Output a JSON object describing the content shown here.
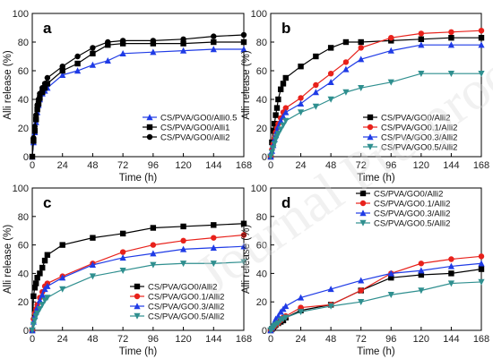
{
  "watermark": "Journal Pre-proof",
  "colors": {
    "CS/PVA/GO0/Alli2": "#000000",
    "CS/PVA/GO0.1/Alli2": "#e8211b",
    "CS/PVA/GO0.3/Alli2": "#1f3be6",
    "CS/PVA/GO0.5/Alli2": "#2f8f8f",
    "CS/PVA/GO0/Alli0.5": "#1f3be6",
    "CS/PVA/GO0/Alli1": "#000000"
  },
  "chart_data": [
    {
      "panel": "a",
      "type": "line",
      "xlabel": "Time (h)",
      "ylabel": "Alli release (%)",
      "xlim": [
        0,
        168
      ],
      "ylim": [
        0,
        100
      ],
      "xticks": [
        0,
        24,
        48,
        72,
        96,
        120,
        144,
        168
      ],
      "yticks": [
        0,
        20,
        40,
        60,
        80,
        100
      ],
      "legend_position": "bottom-right",
      "series": [
        {
          "name": "CS/PVA/GO0/Alli0.5",
          "marker": "triangle-up",
          "x": [
            0,
            1,
            2,
            3,
            4,
            5,
            6,
            8,
            10,
            12,
            24,
            36,
            48,
            60,
            72,
            96,
            120,
            144,
            168
          ],
          "y": [
            0,
            10,
            17,
            24,
            31,
            36,
            40,
            44,
            46,
            48,
            57,
            60,
            64,
            67,
            72,
            73,
            74,
            75,
            75
          ]
        },
        {
          "name": "CS/PVA/GO0/Alli1",
          "marker": "square",
          "x": [
            0,
            1,
            2,
            3,
            4,
            5,
            6,
            8,
            10,
            12,
            24,
            36,
            48,
            60,
            72,
            96,
            120,
            144,
            168
          ],
          "y": [
            0,
            11,
            18,
            26,
            33,
            37,
            41,
            45,
            48,
            51,
            60,
            65,
            72,
            78,
            79,
            79,
            79,
            80,
            80
          ]
        },
        {
          "name": "CS/PVA/GO0/Alli2",
          "marker": "circle",
          "x": [
            0,
            1,
            2,
            3,
            4,
            5,
            6,
            8,
            10,
            12,
            24,
            36,
            48,
            60,
            72,
            96,
            120,
            144,
            168
          ],
          "y": [
            0,
            13,
            21,
            29,
            36,
            40,
            44,
            48,
            51,
            55,
            63,
            70,
            76,
            80,
            81,
            81,
            82,
            84,
            85
          ]
        }
      ]
    },
    {
      "panel": "b",
      "type": "line",
      "xlabel": "Time (h)",
      "ylabel": "Alli release (%)",
      "xlim": [
        0,
        168
      ],
      "ylim": [
        0,
        100
      ],
      "xticks": [
        0,
        24,
        48,
        72,
        96,
        120,
        144,
        168
      ],
      "yticks": [
        0,
        20,
        40,
        60,
        80,
        100
      ],
      "legend_position": "bottom-right",
      "series": [
        {
          "name": "CS/PVA/GO0/Alli2",
          "marker": "square",
          "x": [
            0,
            1,
            2,
            3,
            4,
            5,
            6,
            8,
            10,
            12,
            24,
            36,
            48,
            60,
            72,
            96,
            120,
            144,
            168
          ],
          "y": [
            0,
            10,
            18,
            23,
            29,
            34,
            40,
            47,
            51,
            55,
            63,
            70,
            76,
            80,
            80,
            81,
            82,
            83,
            83
          ]
        },
        {
          "name": "CS/PVA/GO0.1/Alli2",
          "marker": "circle",
          "x": [
            0,
            1,
            2,
            3,
            4,
            5,
            6,
            8,
            10,
            12,
            24,
            36,
            48,
            60,
            72,
            96,
            120,
            144,
            168
          ],
          "y": [
            0,
            5,
            9,
            13,
            17,
            20,
            23,
            27,
            31,
            34,
            41,
            50,
            58,
            66,
            76,
            83,
            86,
            87,
            88
          ]
        },
        {
          "name": "CS/PVA/GO0.3/Alli2",
          "marker": "triangle-up",
          "x": [
            0,
            1,
            2,
            3,
            4,
            5,
            6,
            8,
            10,
            12,
            24,
            36,
            48,
            60,
            72,
            96,
            120,
            144,
            168
          ],
          "y": [
            0,
            4,
            8,
            12,
            15,
            18,
            21,
            25,
            28,
            31,
            37,
            45,
            52,
            61,
            68,
            74,
            78,
            78,
            78
          ]
        },
        {
          "name": "CS/PVA/GO0.5/Alli2",
          "marker": "triangle-down",
          "x": [
            0,
            1,
            2,
            3,
            4,
            5,
            6,
            8,
            10,
            12,
            24,
            36,
            48,
            60,
            72,
            96,
            120,
            144,
            168
          ],
          "y": [
            0,
            3,
            6,
            9,
            12,
            14,
            16,
            19,
            22,
            25,
            31,
            35,
            40,
            45,
            48,
            52,
            58,
            58,
            58
          ]
        }
      ]
    },
    {
      "panel": "c",
      "type": "line",
      "xlabel": "Time (h)",
      "ylabel": "Alli release (%)",
      "xlim": [
        0,
        168
      ],
      "ylim": [
        0,
        100
      ],
      "xticks": [
        0,
        24,
        48,
        72,
        96,
        120,
        144,
        168
      ],
      "yticks": [
        0,
        20,
        40,
        60,
        80,
        100
      ],
      "legend_position": "bottom-right",
      "series": [
        {
          "name": "CS/PVA/GO0/Alli2",
          "marker": "square",
          "x": [
            0,
            1,
            2,
            3,
            4,
            6,
            8,
            10,
            12,
            24,
            48,
            72,
            96,
            120,
            144,
            168
          ],
          "y": [
            0,
            24,
            30,
            33,
            37,
            40,
            44,
            49,
            53,
            60,
            65,
            68,
            72,
            73,
            74,
            75
          ]
        },
        {
          "name": "CS/PVA/GO0.1/Alli2",
          "marker": "circle",
          "x": [
            0,
            1,
            2,
            3,
            4,
            6,
            8,
            10,
            12,
            24,
            48,
            72,
            96,
            120,
            144,
            168
          ],
          "y": [
            0,
            8,
            12,
            15,
            18,
            23,
            27,
            31,
            33,
            38,
            47,
            55,
            60,
            63,
            65,
            67
          ]
        },
        {
          "name": "CS/PVA/GO0.3/Alli2",
          "marker": "triangle-up",
          "x": [
            0,
            1,
            2,
            3,
            4,
            6,
            8,
            10,
            12,
            24,
            48,
            72,
            96,
            120,
            144,
            168
          ],
          "y": [
            0,
            6,
            10,
            13,
            16,
            21,
            25,
            29,
            31,
            37,
            46,
            51,
            54,
            57,
            58,
            59
          ]
        },
        {
          "name": "CS/PVA/GO0.5/Alli2",
          "marker": "triangle-down",
          "x": [
            0,
            1,
            2,
            3,
            4,
            6,
            8,
            10,
            12,
            24,
            48,
            72,
            96,
            120,
            144,
            168
          ],
          "y": [
            0,
            4,
            7,
            10,
            12,
            15,
            18,
            21,
            23,
            29,
            38,
            42,
            46,
            47,
            47,
            48
          ]
        }
      ]
    },
    {
      "panel": "d",
      "type": "line",
      "xlabel": "Time (h)",
      "ylabel": "Alli release (%)",
      "xlim": [
        0,
        168
      ],
      "ylim": [
        0,
        100
      ],
      "xticks": [
        0,
        24,
        48,
        72,
        96,
        120,
        144,
        168
      ],
      "yticks": [
        0,
        20,
        40,
        60,
        80,
        100
      ],
      "legend_position": "top-right",
      "series": [
        {
          "name": "CS/PVA/GO0/Alli2",
          "marker": "square",
          "x": [
            0,
            1,
            2,
            3,
            4,
            6,
            8,
            10,
            12,
            24,
            48,
            72,
            96,
            120,
            144,
            168
          ],
          "y": [
            0,
            1,
            2,
            3,
            4,
            5,
            6,
            7,
            9,
            14,
            18,
            28,
            37,
            39,
            40,
            43
          ]
        },
        {
          "name": "CS/PVA/GO0.1/Alli2",
          "marker": "circle",
          "x": [
            0,
            1,
            2,
            3,
            4,
            6,
            8,
            10,
            12,
            24,
            48,
            72,
            96,
            120,
            144,
            168
          ],
          "y": [
            0,
            1,
            2,
            3,
            4,
            5,
            7,
            9,
            10,
            16,
            18,
            28,
            40,
            47,
            50,
            52
          ]
        },
        {
          "name": "CS/PVA/GO0.3/Alli2",
          "marker": "triangle-up",
          "x": [
            0,
            1,
            2,
            3,
            4,
            6,
            8,
            10,
            12,
            24,
            48,
            72,
            96,
            120,
            144,
            168
          ],
          "y": [
            0,
            2,
            4,
            6,
            8,
            10,
            13,
            15,
            17,
            23,
            29,
            35,
            40,
            42,
            45,
            47
          ]
        },
        {
          "name": "CS/PVA/GO0.5/Alli2",
          "marker": "triangle-down",
          "x": [
            0,
            1,
            2,
            3,
            4,
            6,
            8,
            10,
            12,
            24,
            48,
            72,
            96,
            120,
            144,
            168
          ],
          "y": [
            0,
            1,
            2,
            3,
            4,
            5,
            7,
            8,
            9,
            13,
            17,
            20,
            25,
            28,
            33,
            34
          ]
        }
      ]
    }
  ]
}
